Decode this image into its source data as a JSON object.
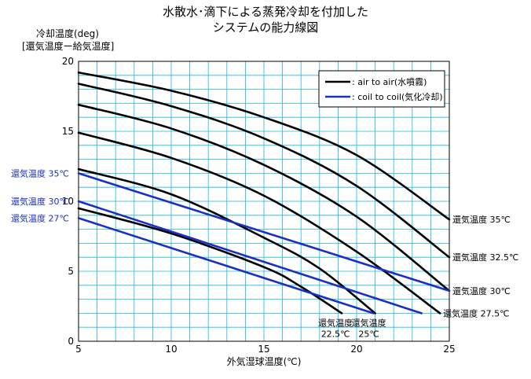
{
  "title_lines": [
    "水散水･滴下による蒸発冷却を付加した",
    "システムの能力線図"
  ],
  "ylabel_lines": [
    "冷却温度(deg)",
    "[還気温度ー給気温度]"
  ],
  "chart_data": {
    "type": "line",
    "xlabel": "外気湿球温度(℃)",
    "xlim": [
      5,
      25
    ],
    "ylim": [
      0,
      20
    ],
    "xticks": [
      5,
      10,
      15,
      20,
      25
    ],
    "yticks": [
      0,
      5,
      10,
      15,
      20
    ],
    "xtick_labels": [
      "5",
      "10",
      "15",
      "20",
      "25"
    ],
    "ytick_labels": [
      "0",
      "5",
      "10",
      "15",
      "20"
    ],
    "grid": true,
    "grid_color": "#19b8e6",
    "legend_position": "top-right",
    "legend": [
      {
        "label": ": air to air(水噴霧)",
        "color": "#000000"
      },
      {
        "label": ": coil to coil(気化冷却)",
        "color": "#1a2fc8"
      }
    ],
    "series": [
      {
        "group": "air to air",
        "color": "#000000",
        "label": "還気温度 35℃",
        "label_pos": "right",
        "x": [
          5,
          10,
          15,
          20,
          25
        ],
        "y": [
          19.2,
          17.9,
          16.0,
          13.3,
          8.7
        ]
      },
      {
        "group": "air to air",
        "color": "#000000",
        "label": "還気温度 32.5℃",
        "label_pos": "right",
        "x": [
          5,
          10,
          15,
          20,
          25
        ],
        "y": [
          18.4,
          16.8,
          14.5,
          11.1,
          6.0
        ]
      },
      {
        "group": "air to air",
        "color": "#000000",
        "label": "還気温度 30℃",
        "label_pos": "right",
        "x": [
          5,
          10,
          15,
          20,
          25
        ],
        "y": [
          16.9,
          15.2,
          12.6,
          8.9,
          3.6
        ]
      },
      {
        "group": "air to air",
        "color": "#000000",
        "label": "還気温度 27.5℃",
        "label_pos": "right",
        "x": [
          5,
          10,
          15,
          20,
          24.5
        ],
        "y": [
          14.9,
          13.1,
          10.4,
          6.4,
          2.0
        ]
      },
      {
        "group": "air to air",
        "color": "#000000",
        "label": "還気温度 25℃",
        "label_pos": "below",
        "x": [
          5,
          10,
          15,
          18,
          21
        ],
        "y": [
          12.3,
          10.5,
          7.4,
          5.2,
          2.0
        ]
      },
      {
        "group": "air to air",
        "color": "#000000",
        "label": "還気温度 22.5℃",
        "label_pos": "below",
        "x": [
          5,
          10,
          15,
          17,
          19.2
        ],
        "y": [
          9.5,
          7.7,
          5.3,
          3.9,
          2.0
        ]
      },
      {
        "group": "coil to coil",
        "color": "#1a2fc8",
        "label": "還気温度 35℃",
        "label_pos": "left",
        "x": [
          5,
          25
        ],
        "y": [
          12.0,
          3.6
        ]
      },
      {
        "group": "coil to coil",
        "color": "#1a2fc8",
        "label": "還気温度 30℃",
        "label_pos": "left",
        "x": [
          5,
          23.5
        ],
        "y": [
          10.0,
          2.0
        ]
      },
      {
        "group": "coil to coil",
        "color": "#1a2fc8",
        "label": "還気温度 27℃",
        "label_pos": "left",
        "x": [
          5,
          20.9
        ],
        "y": [
          8.8,
          2.0
        ]
      }
    ]
  }
}
